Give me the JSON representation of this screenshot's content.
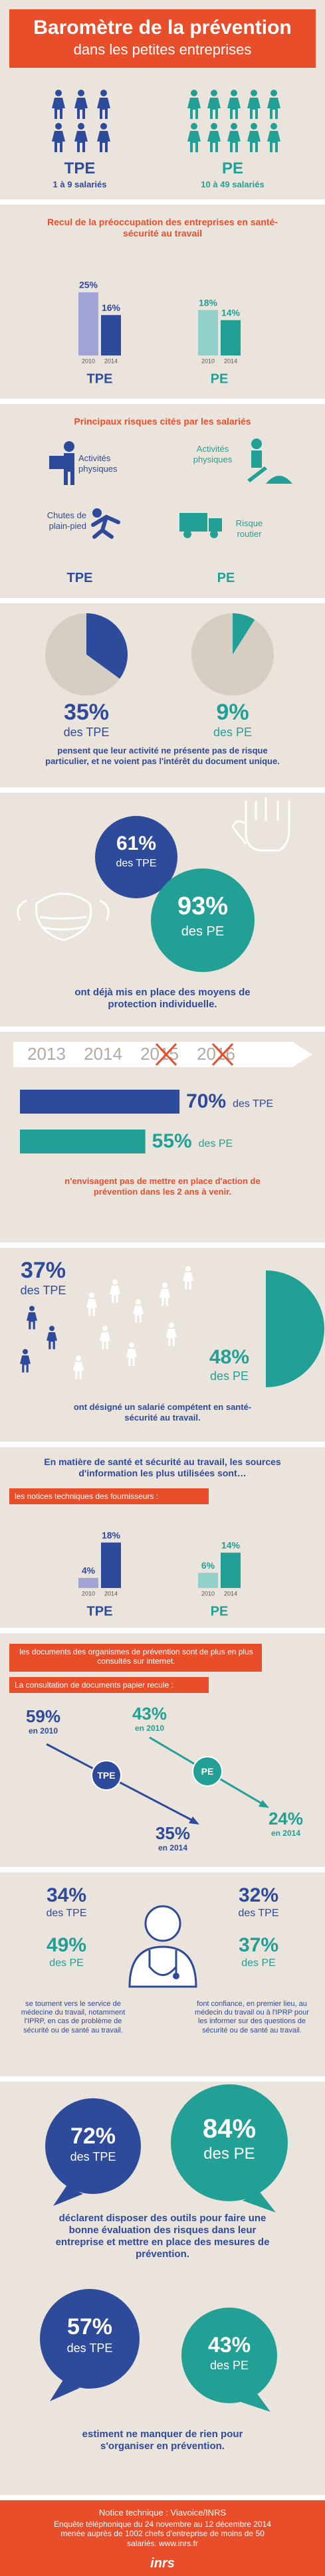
{
  "header": {
    "title": "Baromètre de la prévention",
    "subtitle": "dans les petites entreprises",
    "tpe": {
      "label": "TPE",
      "sub": "1 à 9 salariés"
    },
    "pe": {
      "label": "PE",
      "sub": "10 à 49 salariés"
    }
  },
  "preoccupation": {
    "title": "Recul de la préoccupation des entreprises en santé-sécurité au travail",
    "groups": [
      {
        "name": "TPE",
        "bars": [
          {
            "year": "2010",
            "value": 25,
            "label": "25%"
          },
          {
            "year": "2014",
            "value": 16,
            "label": "16%"
          }
        ]
      },
      {
        "name": "PE",
        "bars": [
          {
            "year": "2010",
            "value": 18,
            "label": "18%"
          },
          {
            "year": "2014",
            "value": 14,
            "label": "14%"
          }
        ]
      }
    ]
  },
  "risques": {
    "title": "Principaux risques cités par les salariés",
    "tpe": {
      "name": "TPE",
      "items": [
        "Activités physiques",
        "Chutes de plain-pied"
      ]
    },
    "pe": {
      "name": "PE",
      "items": [
        "Activités physiques",
        "Risque routier"
      ]
    }
  },
  "document_unique": {
    "pies": [
      {
        "value": 35,
        "label": "35%",
        "sub": "des TPE"
      },
      {
        "value": 9,
        "label": "9%",
        "sub": "des PE"
      }
    ],
    "text": "pensent que leur activité ne présente pas de risque particulier, et ne voient pas l'intérêt du document unique."
  },
  "protection": {
    "tpe": {
      "label": "61%",
      "sub": "des TPE"
    },
    "pe": {
      "label": "93%",
      "sub": "des PE"
    },
    "text": "ont déjà mis en place des moyens de protection individuelle."
  },
  "action": {
    "years": [
      "2013",
      "2014",
      "2015",
      "2016"
    ],
    "bars": [
      {
        "value": 70,
        "label": "70%",
        "sub": "des TPE"
      },
      {
        "value": 55,
        "label": "55%",
        "sub": "des PE"
      }
    ],
    "text": "n'envisagent pas de mettre en place d'action de prévention dans les 2 ans à venir."
  },
  "salarie": {
    "tpe": {
      "label": "37%",
      "sub": "des TPE"
    },
    "pe": {
      "label": "48%",
      "sub": "des PE"
    },
    "text": "ont désigné un salarié compétent en santé-sécurité au travail."
  },
  "sources": {
    "title": "En matière de santé et sécurité au travail, les sources d'information les plus utilisées sont…",
    "notice": "les notices techniques des fournisseurs :",
    "groups": [
      {
        "name": "TPE",
        "bars": [
          {
            "year": "2010",
            "value": 4,
            "label": "4%"
          },
          {
            "year": "2014",
            "value": 18,
            "label": "18%"
          }
        ]
      },
      {
        "name": "PE",
        "bars": [
          {
            "year": "2010",
            "value": 6,
            "label": "6%"
          },
          {
            "year": "2014",
            "value": 14,
            "label": "14%"
          }
        ]
      }
    ]
  },
  "documents": {
    "intro": "les documents des organismes de prévention sont de plus en plus consultés sur internet.",
    "papier": "La consultation de documents papier recule :",
    "tpe": {
      "name": "TPE",
      "from": {
        "label": "59%",
        "year": "en 2010"
      },
      "to": {
        "label": "35%",
        "year": "en 2014"
      }
    },
    "pe": {
      "name": "PE",
      "from": {
        "label": "43%",
        "year": "en 2010"
      },
      "to": {
        "label": "24%",
        "year": "en 2014"
      }
    }
  },
  "medecin": {
    "left": [
      {
        "label": "34%",
        "sub": "des TPE"
      },
      {
        "label": "49%",
        "sub": "des PE"
      }
    ],
    "right": [
      {
        "label": "32%",
        "sub": "des TPE"
      },
      {
        "label": "37%",
        "sub": "des PE"
      }
    ],
    "left_text": "se tournent vers le service de médecine du travail, notamment l'IPRP, en cas de problème de sécurité ou de santé au travail.",
    "right_text": "font confiance, en premier lieu, au médecin du travail ou à l'IPRP pour les informer sur des questions de sécurité ou de santé au travail."
  },
  "outils": {
    "tpe": {
      "label": "72%",
      "sub": "des TPE"
    },
    "pe": {
      "label": "84%",
      "sub": "des PE"
    },
    "text": "déclarent disposer des outils pour faire une bonne évaluation des risques dans leur entreprise et mettre en place des mesures de prévention."
  },
  "organisation": {
    "tpe": {
      "label": "57%",
      "sub": "des TPE"
    },
    "pe": {
      "label": "43%",
      "sub": "des PE"
    },
    "text": "estiment ne manquer de rien pour s'organiser en prévention."
  },
  "footer": {
    "title": "Notice technique : Viavoice/INRS",
    "text": "Enquête téléphonique du 24 novembre au 12 décembre 2014 menée auprès de 1002 chefs d'entreprise de moins de 50 salariés. www.inrs.fr",
    "logo": "inrs"
  }
}
